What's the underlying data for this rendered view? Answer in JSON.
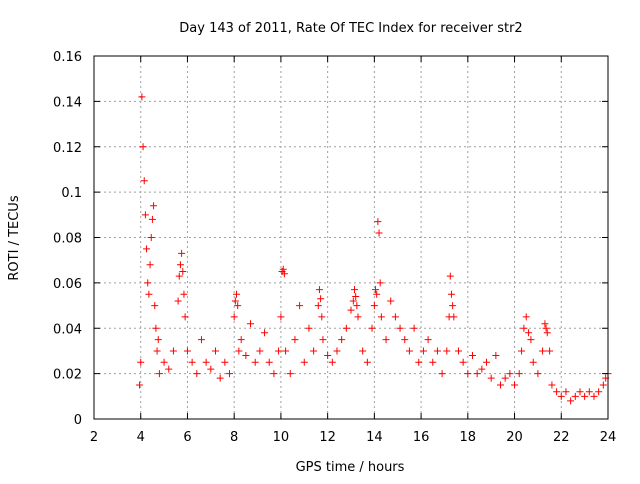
{
  "chart_data": {
    "type": "scatter",
    "title": "Day 143 of 2011, Rate Of TEC Index for receiver str2",
    "xlabel": "GPS time / hours",
    "ylabel": "ROTI / TECUs",
    "xlim": [
      2,
      24
    ],
    "ylim": [
      0,
      0.16
    ],
    "x_ticks": [
      "2",
      "4",
      "6",
      "8",
      "10",
      "12",
      "14",
      "16",
      "18",
      "20",
      "22",
      "24"
    ],
    "y_ticks": [
      "0",
      "0.02",
      "0.04",
      "0.06",
      "0.08",
      "0.1",
      "0.12",
      "0.14",
      "0.16"
    ],
    "grid": true,
    "marker": "+",
    "series": [
      {
        "color": "#ff0000",
        "x": [
          3.95,
          4.0,
          4.05,
          4.1,
          4.15,
          4.2,
          4.25,
          4.3,
          4.35,
          4.4,
          4.45,
          4.5,
          4.55,
          4.6,
          4.65,
          4.7,
          4.75,
          4.8,
          5.0,
          5.2,
          5.4,
          5.6,
          5.65,
          5.7,
          5.75,
          5.8,
          5.85,
          5.9,
          6.0,
          6.2,
          6.4,
          6.6,
          6.8,
          7.0,
          7.2,
          7.4,
          7.6,
          7.8,
          8.0,
          8.05,
          8.1,
          8.15,
          8.2,
          8.3,
          8.5,
          8.7,
          8.9,
          9.1,
          9.3,
          9.5,
          9.7,
          9.9,
          10.0,
          10.05,
          10.1,
          10.15,
          10.2,
          10.4,
          10.6,
          10.8,
          11.0,
          11.2,
          11.4,
          11.6,
          11.65,
          11.7,
          11.75,
          11.8,
          12.0,
          12.2,
          12.4,
          12.6,
          12.8,
          13.0,
          13.1,
          13.15,
          13.2,
          13.25,
          13.3,
          13.5,
          13.7,
          13.9,
          14.0,
          14.05,
          14.1,
          14.15,
          14.2,
          14.25,
          14.3,
          14.5,
          14.7,
          14.9,
          15.1,
          15.3,
          15.5,
          15.7,
          15.9,
          16.1,
          16.3,
          16.5,
          16.7,
          16.9,
          17.1,
          17.2,
          17.25,
          17.3,
          17.35,
          17.4,
          17.6,
          17.8,
          18.0,
          18.2,
          18.4,
          18.6,
          18.8,
          19.0,
          19.2,
          19.4,
          19.6,
          19.8,
          20.0,
          20.2,
          20.3,
          20.4,
          20.5,
          20.6,
          20.7,
          20.8,
          21.0,
          21.2,
          21.3,
          21.35,
          21.4,
          21.5,
          21.6,
          21.8,
          22.0,
          22.2,
          22.4,
          22.6,
          22.8,
          23.0,
          23.2,
          23.4,
          23.6,
          23.8,
          23.9,
          24.0
        ],
        "y": [
          0.015,
          0.025,
          0.142,
          0.12,
          0.105,
          0.09,
          0.075,
          0.06,
          0.055,
          0.068,
          0.08,
          0.088,
          0.094,
          0.05,
          0.04,
          0.03,
          0.035,
          0.02,
          0.025,
          0.022,
          0.03,
          0.052,
          0.063,
          0.068,
          0.073,
          0.065,
          0.055,
          0.045,
          0.03,
          0.025,
          0.02,
          0.035,
          0.025,
          0.022,
          0.03,
          0.018,
          0.025,
          0.02,
          0.045,
          0.052,
          0.055,
          0.05,
          0.03,
          0.035,
          0.028,
          0.042,
          0.025,
          0.03,
          0.038,
          0.025,
          0.02,
          0.03,
          0.045,
          0.065,
          0.066,
          0.064,
          0.03,
          0.02,
          0.035,
          0.05,
          0.025,
          0.04,
          0.03,
          0.05,
          0.057,
          0.053,
          0.045,
          0.035,
          0.028,
          0.025,
          0.03,
          0.035,
          0.04,
          0.048,
          0.052,
          0.057,
          0.054,
          0.05,
          0.045,
          0.03,
          0.025,
          0.04,
          0.05,
          0.057,
          0.055,
          0.087,
          0.082,
          0.06,
          0.045,
          0.035,
          0.052,
          0.045,
          0.04,
          0.035,
          0.03,
          0.04,
          0.025,
          0.03,
          0.035,
          0.025,
          0.03,
          0.02,
          0.03,
          0.045,
          0.063,
          0.055,
          0.05,
          0.045,
          0.03,
          0.025,
          0.02,
          0.028,
          0.02,
          0.022,
          0.025,
          0.018,
          0.028,
          0.015,
          0.018,
          0.02,
          0.015,
          0.02,
          0.03,
          0.04,
          0.045,
          0.038,
          0.035,
          0.025,
          0.02,
          0.03,
          0.042,
          0.04,
          0.038,
          0.03,
          0.015,
          0.012,
          0.01,
          0.012,
          0.008,
          0.01,
          0.012,
          0.01,
          0.012,
          0.01,
          0.012,
          0.015,
          0.018,
          0.02
        ]
      }
    ]
  }
}
